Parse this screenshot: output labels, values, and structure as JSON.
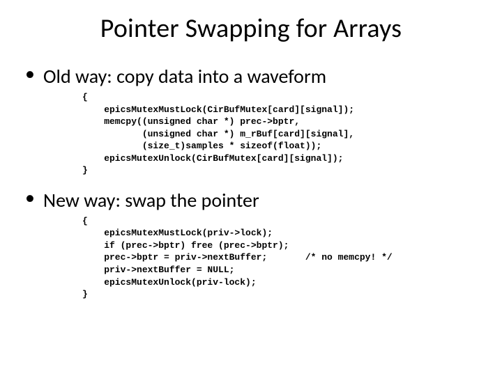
{
  "title": "Pointer Swapping for Arrays",
  "bullets": {
    "old": {
      "text": "Old way: copy data into a waveform",
      "code": "{\n    epicsMutexMustLock(CirBufMutex[card][signal]);\n    memcpy((unsigned char *) prec->bptr,\n           (unsigned char *) m_rBuf[card][signal],\n           (size_t)samples * sizeof(float));\n    epicsMutexUnlock(CirBufMutex[card][signal]);\n}"
    },
    "new": {
      "text": "New way: swap the pointer",
      "code": "{\n    epicsMutexMustLock(priv->lock);\n    if (prec->bptr) free (prec->bptr);\n    prec->bptr = priv->nextBuffer;       /* no memcpy! */\n    priv->nextBuffer = NULL;\n    epicsMutexUnlock(priv-lock);\n}"
    }
  },
  "styling": {
    "background_color": "#ffffff",
    "text_color": "#000000",
    "title_fontsize": 38,
    "bullet_fontsize": 28,
    "code_fontsize": 13,
    "code_font": "Courier New",
    "body_font": "Calibri"
  }
}
